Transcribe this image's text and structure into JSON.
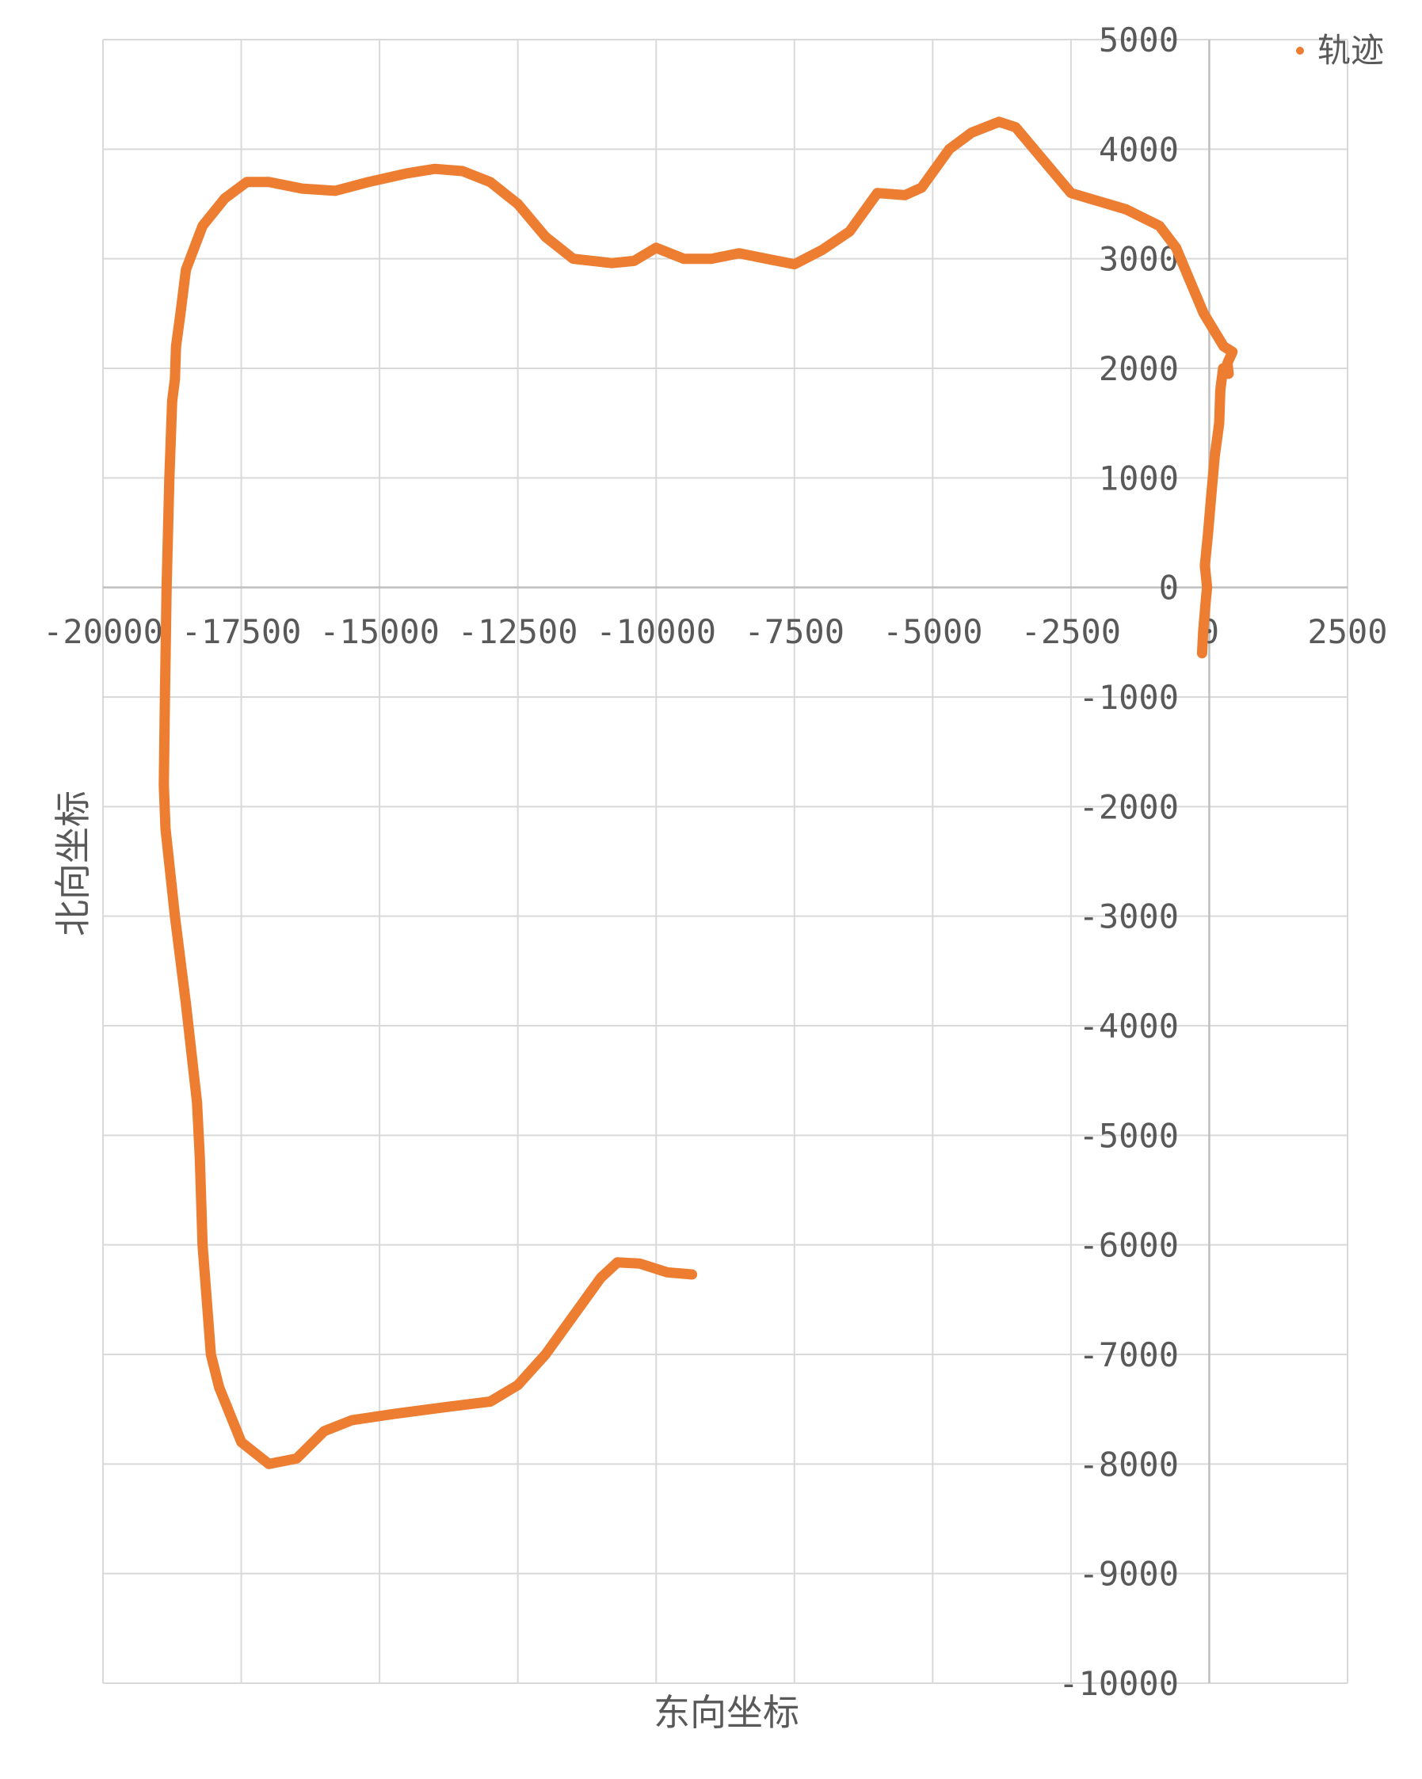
{
  "chart_data": {
    "type": "scatter",
    "title": "",
    "xlabel": "东向坐标",
    "ylabel": "北向坐标",
    "xlim": [
      -20000,
      2500
    ],
    "ylim": [
      -10000,
      5000
    ],
    "x_ticks": [
      "-20000",
      "-17500",
      "-15000",
      "-12500",
      "-10000",
      "-7500",
      "-5000",
      "-2500",
      "0",
      "2500"
    ],
    "y_ticks": [
      "5000",
      "4000",
      "3000",
      "2000",
      "1000",
      "0",
      "-1000",
      "-2000",
      "-3000",
      "-4000",
      "-5000",
      "-6000",
      "-7000",
      "-8000",
      "-9000",
      "-10000"
    ],
    "grid": true,
    "legend_position": "top-right",
    "series": [
      {
        "name": "轨迹",
        "color": "#ED7D31",
        "points": [
          [
            -130,
            -600
          ],
          [
            -110,
            -400
          ],
          [
            -60,
            -100
          ],
          [
            -40,
            0
          ],
          [
            -80,
            200
          ],
          [
            -20,
            500
          ],
          [
            30,
            800
          ],
          [
            100,
            1200
          ],
          [
            180,
            1500
          ],
          [
            200,
            1800
          ],
          [
            250,
            2000
          ],
          [
            320,
            2000
          ],
          [
            350,
            1950
          ],
          [
            330,
            2050
          ],
          [
            420,
            2150
          ],
          [
            260,
            2200
          ],
          [
            -100,
            2500
          ],
          [
            -350,
            2800
          ],
          [
            -600,
            3100
          ],
          [
            -900,
            3300
          ],
          [
            -1500,
            3450
          ],
          [
            -2500,
            3600
          ],
          [
            -3000,
            3900
          ],
          [
            -3500,
            4200
          ],
          [
            -3800,
            4250
          ],
          [
            -4300,
            4150
          ],
          [
            -4700,
            4000
          ],
          [
            -5200,
            3650
          ],
          [
            -5500,
            3580
          ],
          [
            -6000,
            3600
          ],
          [
            -6500,
            3250
          ],
          [
            -7000,
            3080
          ],
          [
            -7500,
            2950
          ],
          [
            -8000,
            3000
          ],
          [
            -8500,
            3050
          ],
          [
            -9000,
            3000
          ],
          [
            -9500,
            3000
          ],
          [
            -10000,
            3100
          ],
          [
            -10400,
            2980
          ],
          [
            -10800,
            2960
          ],
          [
            -11500,
            3000
          ],
          [
            -12000,
            3200
          ],
          [
            -12500,
            3500
          ],
          [
            -13000,
            3700
          ],
          [
            -13500,
            3800
          ],
          [
            -14000,
            3820
          ],
          [
            -14500,
            3780
          ],
          [
            -15200,
            3700
          ],
          [
            -15800,
            3620
          ],
          [
            -16400,
            3640
          ],
          [
            -17000,
            3700
          ],
          [
            -17400,
            3700
          ],
          [
            -17800,
            3550
          ],
          [
            -18200,
            3300
          ],
          [
            -18500,
            2900
          ],
          [
            -18600,
            2500
          ],
          [
            -18680,
            2200
          ],
          [
            -18700,
            1900
          ],
          [
            -18750,
            1700
          ],
          [
            -18800,
            1000
          ],
          [
            -18850,
            0
          ],
          [
            -18880,
            -1000
          ],
          [
            -18900,
            -1800
          ],
          [
            -18870,
            -2200
          ],
          [
            -18700,
            -3000
          ],
          [
            -18500,
            -3800
          ],
          [
            -18300,
            -4700
          ],
          [
            -18250,
            -5200
          ],
          [
            -18200,
            -6000
          ],
          [
            -18050,
            -7000
          ],
          [
            -17900,
            -7300
          ],
          [
            -17500,
            -7800
          ],
          [
            -17000,
            -8000
          ],
          [
            -16500,
            -7950
          ],
          [
            -16000,
            -7700
          ],
          [
            -15500,
            -7600
          ],
          [
            -14700,
            -7540
          ],
          [
            -13800,
            -7480
          ],
          [
            -13000,
            -7430
          ],
          [
            -12500,
            -7280
          ],
          [
            -12000,
            -7000
          ],
          [
            -11500,
            -6650
          ],
          [
            -11000,
            -6300
          ],
          [
            -10700,
            -6160
          ],
          [
            -10300,
            -6170
          ],
          [
            -9800,
            -6250
          ],
          [
            -9350,
            -6270
          ]
        ]
      }
    ]
  }
}
